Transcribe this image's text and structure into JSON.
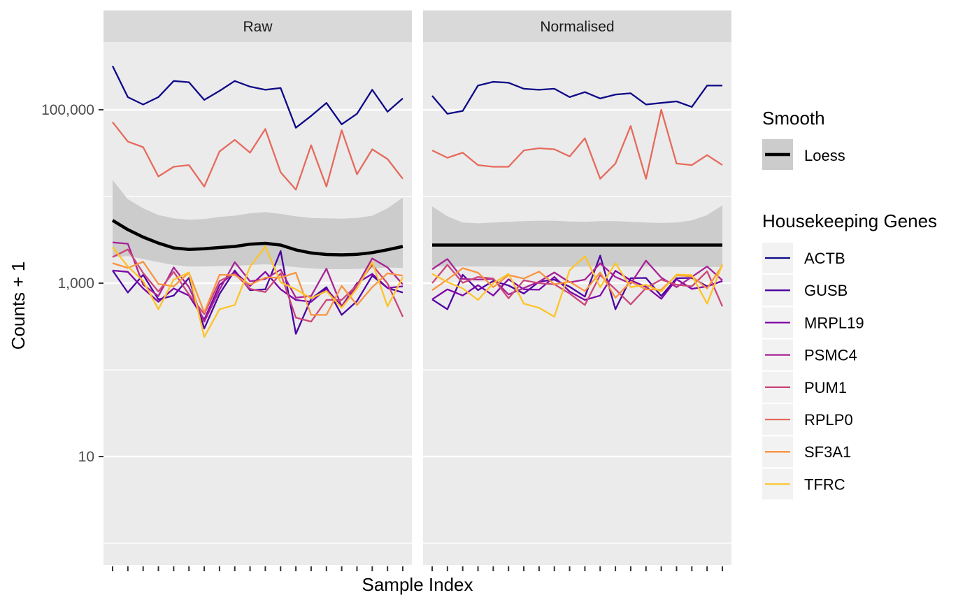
{
  "chart_data": {
    "type": "line",
    "xlabel": "Sample Index",
    "ylabel": "Counts + 1",
    "y_scale": "log10",
    "ylim": [
      0.7,
      650000
    ],
    "y_ticks": [
      {
        "value": 10,
        "label": "10"
      },
      {
        "value": 1000,
        "label": "1,000"
      },
      {
        "value": 100000,
        "label": "100,000"
      }
    ],
    "y_minor_ticks": [
      1,
      100,
      10000
    ],
    "x_tick_labels_shown": false,
    "panel_background": "#ebebeb",
    "strip_background": "#d9d9d9",
    "grid": true,
    "legend_position": "right",
    "smooth_legend": {
      "title": "Smooth",
      "label": "Loess",
      "color": "#000000",
      "band_color": "#cccccc"
    },
    "gene_legend": {
      "title": "Housekeeping Genes"
    },
    "genes": [
      {
        "name": "ACTB",
        "color": "#0d0887"
      },
      {
        "name": "GUSB",
        "color": "#4b03a1"
      },
      {
        "name": "MRPL19",
        "color": "#7d03a8"
      },
      {
        "name": "PSMC4",
        "color": "#a82296"
      },
      {
        "name": "PUM1",
        "color": "#cb4679"
      },
      {
        "name": "RPLP0",
        "color": "#e56b5d"
      },
      {
        "name": "SF3A1",
        "color": "#f89441"
      },
      {
        "name": "TFRC",
        "color": "#fdc328"
      }
    ],
    "panels": [
      {
        "title": "Raw",
        "x": [
          1,
          2,
          3,
          4,
          5,
          6,
          7,
          8,
          9,
          10,
          11,
          12,
          13,
          14,
          15,
          16,
          17,
          18,
          19,
          20
        ],
        "series": [
          {
            "name": "ACTB",
            "values": [
              320000,
              140000,
              115000,
              140000,
              215000,
              208000,
              130000,
              165000,
              215000,
              185000,
              170000,
              178000,
              62000,
              85000,
              120000,
              68000,
              90000,
              170000,
              95000,
              135000
            ]
          },
          {
            "name": "GUSB",
            "values": [
              1400,
              780,
              1250,
              650,
              720,
              1150,
              300,
              750,
              1400,
              830,
              850,
              2350,
              260,
              660,
              900,
              430,
              620,
              1220,
              880,
              780
            ]
          },
          {
            "name": "MRPL19",
            "values": [
              1400,
              1350,
              870,
              610,
              870,
              720,
              380,
              950,
              1350,
              930,
              1350,
              850,
              640,
              610,
              860,
              540,
              1000,
              1280,
              880,
              920
            ]
          },
          {
            "name": "PSMC4",
            "values": [
              2950,
              2850,
              960,
              710,
              1520,
              900,
              360,
              840,
              1750,
              1050,
              1120,
              1430,
              680,
              710,
              1470,
              540,
              940,
              1930,
              1520,
              970
            ]
          },
          {
            "name": "PUM1",
            "values": [
              2000,
              2450,
              1310,
              800,
              1350,
              740,
              440,
              1060,
              1290,
              860,
              790,
              1300,
              400,
              360,
              640,
              640,
              950,
              1620,
              990,
              410
            ]
          },
          {
            "name": "RPLP0",
            "values": [
              72000,
              43000,
              37000,
              17000,
              22000,
              23000,
              13000,
              33000,
              45000,
              32000,
              60000,
              19000,
              12000,
              39000,
              13000,
              58000,
              18000,
              35000,
              27000,
              16000
            ]
          },
          {
            "name": "SF3A1",
            "values": [
              1700,
              1500,
              1770,
              980,
              920,
              1320,
              460,
              1250,
              1240,
              960,
              1160,
              1160,
              1320,
              430,
              430,
              930,
              560,
              900,
              1300,
              1220
            ]
          },
          {
            "name": "TFRC",
            "values": [
              2600,
              1560,
              1060,
              500,
              1100,
              1330,
              240,
              500,
              560,
              1550,
              2650,
              1020,
              850,
              670,
              810,
              520,
              870,
              1750,
              540,
              1170
            ]
          }
        ],
        "smooth": {
          "values": [
            5300,
            4150,
            3400,
            2900,
            2550,
            2450,
            2500,
            2580,
            2650,
            2820,
            2880,
            2750,
            2420,
            2230,
            2140,
            2120,
            2150,
            2250,
            2430,
            2650
          ],
          "upper": [
            15500,
            9300,
            7300,
            6100,
            5600,
            5400,
            5500,
            5800,
            6000,
            6400,
            6600,
            6300,
            5900,
            5650,
            5600,
            5550,
            5650,
            6000,
            7300,
            9700
          ],
          "lower": [
            2000,
            2050,
            1900,
            1750,
            1620,
            1560,
            1560,
            1580,
            1580,
            1620,
            1650,
            1600,
            1530,
            1480,
            1450,
            1450,
            1460,
            1480,
            1520,
            1500
          ]
        }
      },
      {
        "title": "Normalised",
        "x": [
          1,
          2,
          3,
          4,
          5,
          6,
          7,
          8,
          9,
          10,
          11,
          12,
          13,
          14,
          15,
          16,
          17,
          18,
          19,
          20
        ],
        "series": [
          {
            "name": "ACTB",
            "values": [
              145000,
              90000,
              97000,
              190000,
              210000,
              205000,
              175000,
              170000,
              175000,
              140000,
              160000,
              135000,
              150000,
              155000,
              115000,
              120000,
              125000,
              108000,
              190000,
              190000
            ]
          },
          {
            "name": "GUSB",
            "values": [
              650,
              500,
              1250,
              830,
              1060,
              940,
              760,
              1040,
              1100,
              910,
              700,
              2080,
              500,
              1140,
              1150,
              710,
              1140,
              1150,
              920,
              1060
            ]
          },
          {
            "name": "MRPL19",
            "values": [
              650,
              850,
              720,
              950,
              720,
              1110,
              850,
              840,
              1180,
              800,
              640,
              720,
              1390,
              1080,
              910,
              660,
              1110,
              860,
              920,
              1060
            ]
          },
          {
            "name": "PSMC4",
            "values": [
              1450,
              1900,
              1120,
              1100,
              1120,
              740,
              880,
              1040,
              1330,
              1020,
              1100,
              1690,
              1180,
              990,
              1820,
              1160,
              900,
              1180,
              1560,
              1080
            ]
          },
          {
            "name": "PUM1",
            "values": [
              1000,
              1630,
              1010,
              1180,
              1130,
              670,
              1080,
              1000,
              970,
              760,
              560,
              1240,
              850,
              570,
              880,
              1100,
              960,
              920,
              1370,
              540
            ]
          },
          {
            "name": "RPLP0",
            "values": [
              34000,
              28000,
              32000,
              23000,
              22000,
              22000,
              34000,
              36000,
              35000,
              29000,
              47000,
              16000,
              24000,
              65000,
              16000,
              100000,
              24000,
              23000,
              30000,
              23000
            ]
          },
          {
            "name": "SF3A1",
            "values": [
              830,
              1100,
              1490,
              1320,
              900,
              1240,
              1130,
              1360,
              970,
              1040,
              810,
              1330,
              680,
              1040,
              850,
              840,
              1230,
              1200,
              870,
              1600
            ]
          },
          {
            "name": "TFRC",
            "values": [
              1280,
              1030,
              870,
              640,
              1000,
              1280,
              580,
              520,
              410,
              1410,
              2040,
              900,
              1700,
              900,
              960,
              800,
              1260,
              1240,
              580,
              1650
            ]
          }
        ],
        "smooth": {
          "values": [
            2750,
            2750,
            2750,
            2750,
            2750,
            2750,
            2750,
            2750,
            2750,
            2750,
            2750,
            2750,
            2750,
            2750,
            2750,
            2750,
            2750,
            2750,
            2750,
            2750
          ],
          "upper": [
            7700,
            5900,
            5000,
            4900,
            5000,
            5100,
            5200,
            5250,
            5250,
            5150,
            5100,
            5200,
            5200,
            5100,
            5000,
            4950,
            5000,
            5300,
            6100,
            7900
          ],
          "lower": [
            1540,
            1560,
            1560,
            1560,
            1560,
            1550,
            1550,
            1540,
            1540,
            1540,
            1550,
            1560,
            1560,
            1560,
            1560,
            1550,
            1540,
            1540,
            1540,
            1540
          ]
        }
      }
    ]
  }
}
